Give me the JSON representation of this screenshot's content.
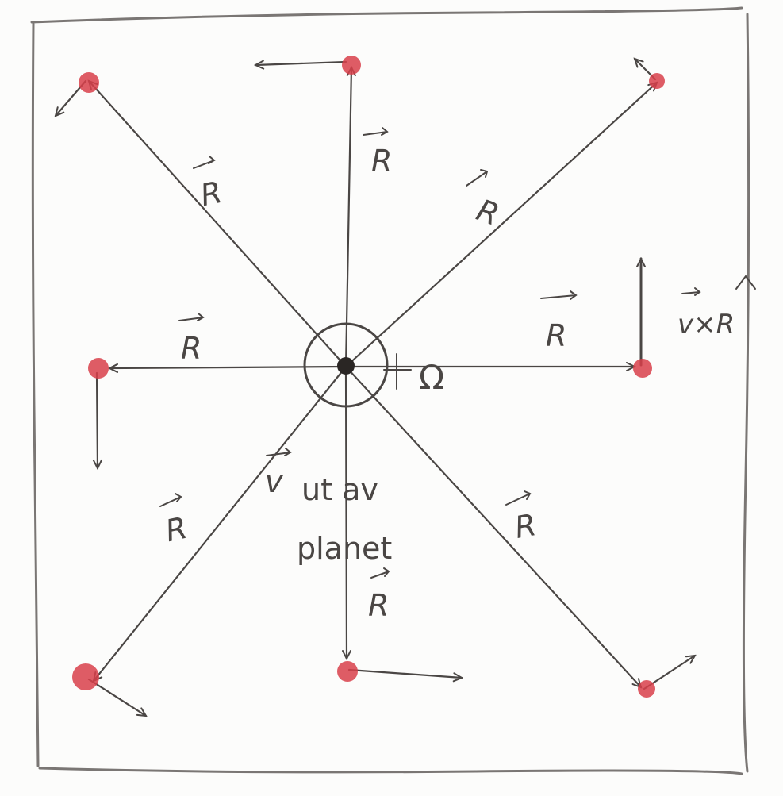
{
  "labels": {
    "r_vector": "R",
    "omega": "Ω",
    "v_cross_r": "v×R",
    "v_label": "v",
    "v_text_line1": "ut av",
    "v_text_line2": "planet"
  },
  "colors": {
    "ink": "#4a4644",
    "planet": "#d8404a",
    "frame": "#7a7674",
    "background": "#fcfcfb"
  }
}
